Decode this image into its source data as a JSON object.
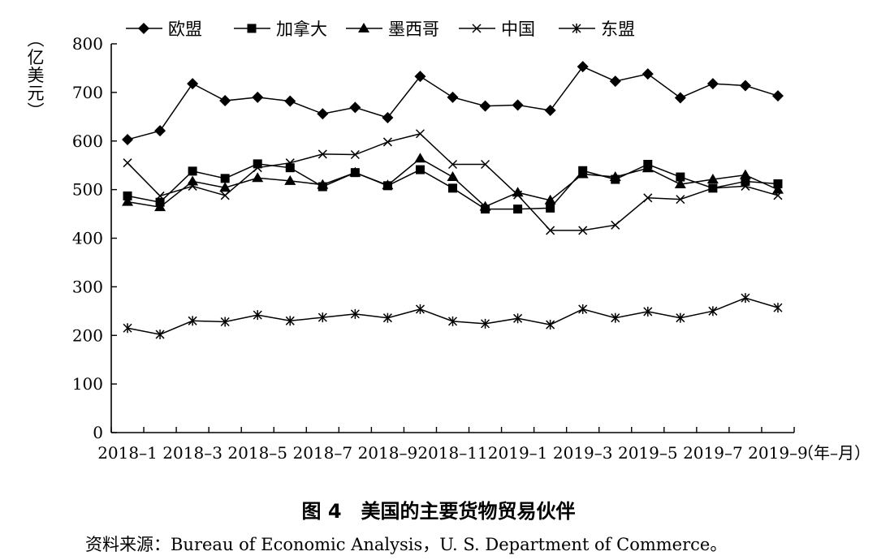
{
  "figure": {
    "caption": "图 4　美国的主要货物贸易伙伴",
    "source": "资料来源：Bureau of Economic Analysis，U. S. Department of Commerce。"
  },
  "chart_data": {
    "type": "line",
    "ylabel": "（亿美元）",
    "xlabel": "（年–月）",
    "ylim": [
      0,
      800
    ],
    "yticks": [
      0,
      100,
      200,
      300,
      400,
      500,
      600,
      700,
      800
    ],
    "x": [
      "2018–1",
      "2018–2",
      "2018–3",
      "2018–4",
      "2018–5",
      "2018–6",
      "2018–7",
      "2018–8",
      "2018–9",
      "2018–10",
      "2018–11",
      "2018–12",
      "2019–1",
      "2019–2",
      "2019–3",
      "2019–4",
      "2019–5",
      "2019–6",
      "2019–7",
      "2019–8",
      "2019–9"
    ],
    "xtick_labels": [
      "2018–1",
      "2018–3",
      "2018–5",
      "2018–7",
      "2018–9",
      "2018–11",
      "2019–1",
      "2019–3",
      "2019–5",
      "2019–7",
      "2019–9"
    ],
    "legend_position": "top",
    "grid": false,
    "series": [
      {
        "name": "欧盟",
        "marker": "diamond",
        "values": [
          603,
          621,
          718,
          683,
          690,
          682,
          656,
          669,
          648,
          733,
          690,
          672,
          674,
          663,
          753,
          723,
          738,
          689,
          718,
          714,
          693
        ]
      },
      {
        "name": "加拿大",
        "marker": "square",
        "values": [
          487,
          474,
          538,
          523,
          553,
          545,
          506,
          535,
          508,
          541,
          503,
          460,
          460,
          462,
          539,
          521,
          552,
          526,
          503,
          517,
          512
        ]
      },
      {
        "name": "墨西哥",
        "marker": "triangle",
        "values": [
          475,
          464,
          517,
          504,
          524,
          518,
          510,
          535,
          509,
          564,
          526,
          465,
          494,
          478,
          532,
          526,
          544,
          511,
          521,
          530,
          500
        ]
      },
      {
        "name": "中国",
        "marker": "x",
        "values": [
          555,
          487,
          507,
          488,
          545,
          555,
          573,
          572,
          598,
          615,
          552,
          552,
          489,
          416,
          416,
          427,
          483,
          480,
          503,
          507,
          488
        ]
      },
      {
        "name": "东盟",
        "marker": "asterisk",
        "values": [
          215,
          202,
          230,
          228,
          242,
          230,
          237,
          244,
          236,
          254,
          229,
          224,
          235,
          222,
          254,
          236,
          249,
          236,
          250,
          277,
          257
        ]
      }
    ]
  }
}
